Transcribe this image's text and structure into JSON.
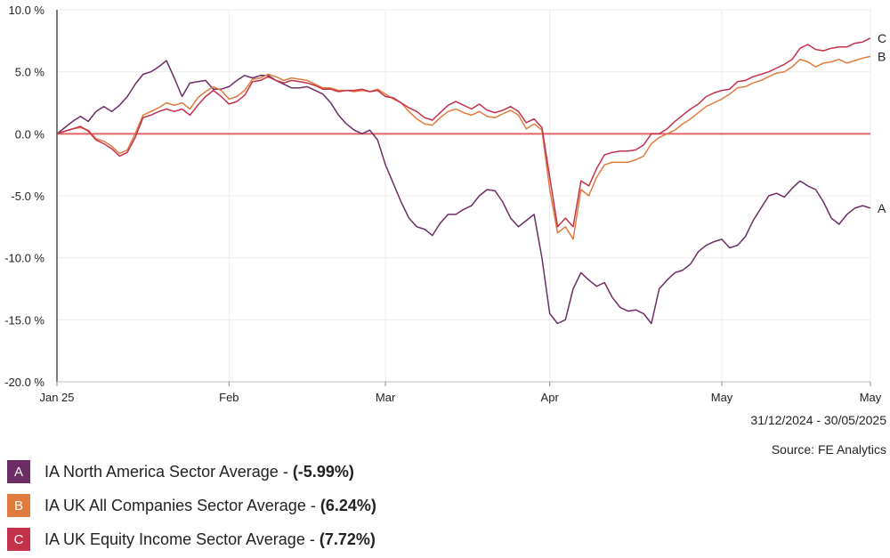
{
  "chart_data": {
    "type": "line",
    "ylim": [
      -20,
      10
    ],
    "y_ticks": [
      10,
      5,
      0,
      -5,
      -10,
      -15,
      -20
    ],
    "y_tick_labels": [
      "10.0 %",
      "5.0 %",
      "0.0 %",
      "-5.0 %",
      "-10.0 %",
      "-15.0 %",
      "-20.0 %"
    ],
    "x_tick_labels": [
      "Jan 25",
      "Feb",
      "Mar",
      "Apr",
      "May",
      "May"
    ],
    "x_tick_positions": [
      0,
      22,
      42,
      63,
      85,
      104
    ],
    "x_count": 105,
    "zero_line_color": "#e06666",
    "grid": true,
    "series": [
      {
        "letter": "A",
        "name": "IA North America Sector Average",
        "color": "#6b2d63",
        "final": "(-5.99%)",
        "values": [
          0,
          0.5,
          1.0,
          1.4,
          1.0,
          1.8,
          2.2,
          1.8,
          2.3,
          3.0,
          4.0,
          4.8,
          5.0,
          5.4,
          5.9,
          4.5,
          3.0,
          4.1,
          4.2,
          4.3,
          3.6,
          3.6,
          3.8,
          4.3,
          4.7,
          4.5,
          4.7,
          4.7,
          4.3,
          4.0,
          3.7,
          3.7,
          3.8,
          3.5,
          3.2,
          2.5,
          1.5,
          0.8,
          0.3,
          0,
          0.3,
          -0.5,
          -2.5,
          -4.0,
          -5.5,
          -6.8,
          -7.5,
          -7.7,
          -8.2,
          -7.2,
          -6.5,
          -6.5,
          -6.1,
          -5.8,
          -5.0,
          -4.5,
          -4.6,
          -5.5,
          -6.8,
          -7.5,
          -7.0,
          -6.5,
          -10.0,
          -14.5,
          -15.3,
          -15.0,
          -12.5,
          -11.2,
          -11.8,
          -12.3,
          -12.0,
          -13.2,
          -14.0,
          -14.3,
          -14.2,
          -14.5,
          -15.3,
          -12.5,
          -11.8,
          -11.2,
          -11.0,
          -10.5,
          -9.5,
          -9.0,
          -8.7,
          -8.5,
          -9.2,
          -9.0,
          -8.3,
          -7.0,
          -6.0,
          -5.0,
          -4.8,
          -5.1,
          -4.4,
          -3.8,
          -4.2,
          -4.5,
          -5.5,
          -6.8,
          -7.3,
          -6.5,
          -6.0,
          -5.8,
          -5.99
        ]
      },
      {
        "letter": "B",
        "name": "IA UK All Companies Sector Average",
        "color": "#e07b3e",
        "final": "(6.24%)",
        "values": [
          0,
          0.2,
          0.4,
          0.5,
          0.3,
          -0.4,
          -0.6,
          -1.0,
          -1.6,
          -1.3,
          0,
          1.5,
          1.8,
          2.1,
          2.5,
          2.3,
          2.5,
          2.0,
          2.9,
          3.4,
          3.8,
          3.5,
          2.8,
          3.0,
          3.5,
          4.4,
          4.5,
          4.8,
          4.6,
          4.3,
          4.5,
          4.4,
          4.3,
          4.0,
          3.7,
          3.7,
          3.5,
          3.5,
          3.4,
          3.5,
          3.4,
          3.6,
          3.2,
          2.8,
          2.5,
          1.8,
          1.2,
          0.8,
          0.7,
          1.3,
          1.8,
          2.0,
          1.7,
          1.5,
          1.8,
          1.4,
          1.3,
          1.6,
          1.9,
          1.5,
          0.4,
          0.8,
          0.3,
          -4.5,
          -8.0,
          -7.5,
          -8.5,
          -4.5,
          -5.0,
          -3.5,
          -2.5,
          -2.3,
          -2.3,
          -2.3,
          -2.1,
          -1.8,
          -0.8,
          -0.3,
          0,
          0.3,
          0.8,
          1.2,
          1.7,
          2.2,
          2.5,
          2.8,
          3.2,
          3.7,
          3.8,
          4.1,
          4.3,
          4.6,
          4.9,
          5.0,
          5.4,
          6.0,
          5.8,
          5.4,
          5.7,
          5.8,
          6.0,
          5.7,
          5.9,
          6.1,
          6.24
        ]
      },
      {
        "letter": "C",
        "name": "IA UK Equity Income Sector Average",
        "color": "#c4314b",
        "final": "(7.72%)",
        "values": [
          0,
          0.2,
          0.4,
          0.6,
          0.2,
          -0.5,
          -0.8,
          -1.2,
          -1.8,
          -1.5,
          -0.3,
          1.3,
          1.5,
          1.8,
          2.0,
          1.8,
          2.0,
          1.5,
          2.3,
          3.0,
          3.5,
          3.0,
          2.4,
          2.6,
          3.1,
          4.2,
          4.3,
          4.6,
          4.3,
          4.1,
          4.3,
          4.2,
          4.1,
          3.9,
          3.6,
          3.6,
          3.4,
          3.5,
          3.5,
          3.6,
          3.4,
          3.5,
          3.0,
          2.9,
          2.5,
          2.1,
          1.8,
          1.3,
          1.1,
          1.7,
          2.3,
          2.6,
          2.3,
          2.0,
          2.4,
          1.9,
          1.7,
          1.9,
          2.2,
          1.8,
          0.9,
          1.2,
          0.5,
          -3.5,
          -7.5,
          -6.8,
          -7.5,
          -3.8,
          -4.2,
          -2.8,
          -1.7,
          -1.5,
          -1.4,
          -1.4,
          -1.3,
          -0.9,
          0,
          0,
          0.4,
          1.0,
          1.5,
          2.0,
          2.4,
          3.0,
          3.3,
          3.5,
          3.6,
          4.2,
          4.3,
          4.6,
          4.8,
          5.0,
          5.3,
          5.6,
          6.0,
          6.9,
          7.2,
          6.8,
          6.7,
          6.9,
          7.0,
          7.0,
          7.3,
          7.4,
          7.72
        ]
      }
    ]
  },
  "date_range": "31/12/2024 - 30/05/2025",
  "source": "Source: FE Analytics"
}
